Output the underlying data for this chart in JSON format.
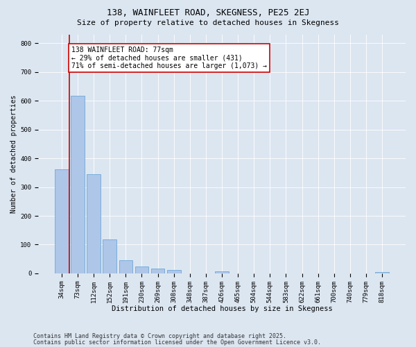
{
  "title1": "138, WAINFLEET ROAD, SKEGNESS, PE25 2EJ",
  "title2": "Size of property relative to detached houses in Skegness",
  "xlabel": "Distribution of detached houses by size in Skegness",
  "ylabel": "Number of detached properties",
  "categories": [
    "34sqm",
    "73sqm",
    "112sqm",
    "152sqm",
    "191sqm",
    "230sqm",
    "269sqm",
    "308sqm",
    "348sqm",
    "387sqm",
    "426sqm",
    "465sqm",
    "504sqm",
    "544sqm",
    "583sqm",
    "622sqm",
    "661sqm",
    "700sqm",
    "740sqm",
    "779sqm",
    "818sqm"
  ],
  "values": [
    362,
    618,
    345,
    117,
    45,
    23,
    17,
    12,
    0,
    0,
    8,
    0,
    0,
    0,
    0,
    0,
    0,
    0,
    0,
    0,
    5
  ],
  "bar_color": "#aec6e8",
  "bar_edge_color": "#5a9fd4",
  "vline_color": "#cc0000",
  "annotation_text": "138 WAINFLEET ROAD: 77sqm\n← 29% of detached houses are smaller (431)\n71% of semi-detached houses are larger (1,073) →",
  "annotation_box_color": "#ffffff",
  "annotation_box_edge_color": "#cc0000",
  "ylim": [
    0,
    830
  ],
  "yticks": [
    0,
    100,
    200,
    300,
    400,
    500,
    600,
    700,
    800
  ],
  "bg_color": "#dce6f1",
  "plot_bg_color": "#dce6f1",
  "footer1": "Contains HM Land Registry data © Crown copyright and database right 2025.",
  "footer2": "Contains public sector information licensed under the Open Government Licence v3.0.",
  "title1_fontsize": 9,
  "title2_fontsize": 8,
  "xlabel_fontsize": 7.5,
  "ylabel_fontsize": 7,
  "tick_fontsize": 6.5,
  "annotation_fontsize": 7,
  "footer_fontsize": 6
}
